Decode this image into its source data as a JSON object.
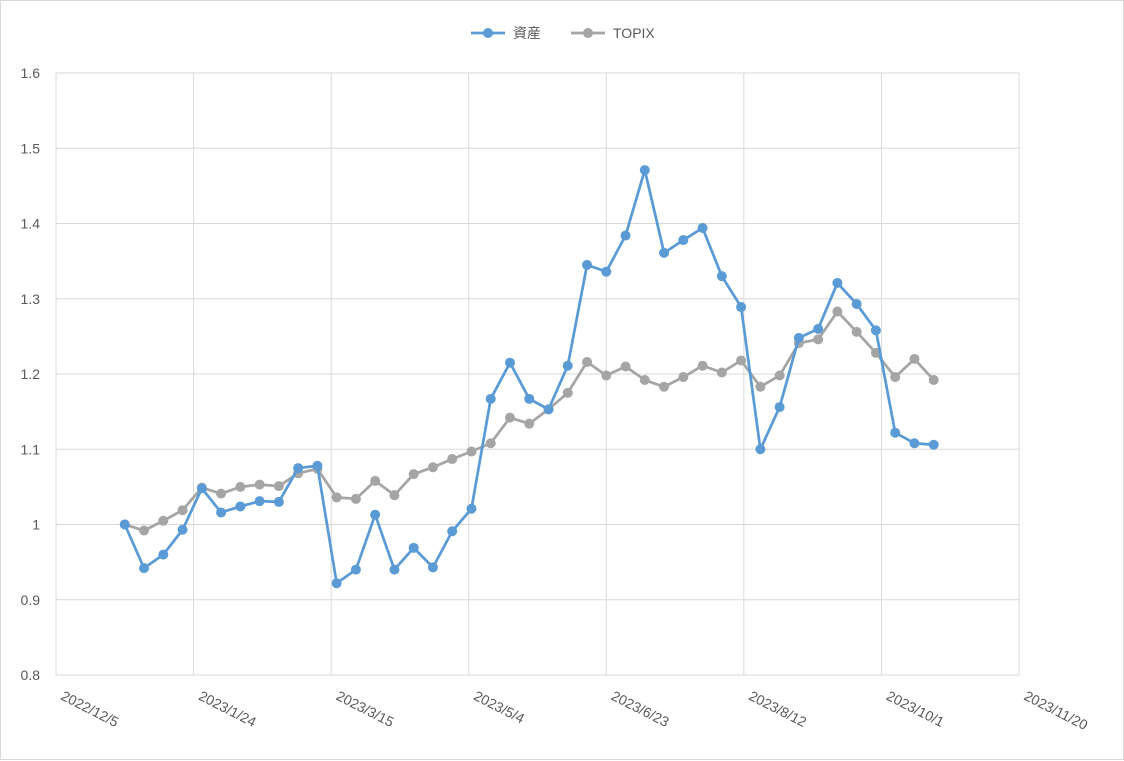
{
  "chart_data": {
    "type": "line",
    "title": "",
    "xlabel": "",
    "ylabel": "",
    "ylim": [
      0.8,
      1.6
    ],
    "yticks": [
      "0.8",
      "0.9",
      "1",
      "1.1",
      "1.2",
      "1.3",
      "1.4",
      "1.5",
      "1.6"
    ],
    "xlim": [
      "2022/12/5",
      "2023/11/20"
    ],
    "xticks": [
      "2022/12/5",
      "2023/1/24",
      "2023/3/15",
      "2023/5/4",
      "2023/6/23",
      "2023/8/12",
      "2023/10/1",
      "2023/11/20"
    ],
    "grid": true,
    "legend": "top-center",
    "x": [
      "2022/12/30",
      "2023/1/6",
      "2023/1/13",
      "2023/1/20",
      "2023/1/27",
      "2023/2/3",
      "2023/2/10",
      "2023/2/17",
      "2023/2/24",
      "2023/3/3",
      "2023/3/10",
      "2023/3/17",
      "2023/3/24",
      "2023/3/31",
      "2023/4/7",
      "2023/4/14",
      "2023/4/21",
      "2023/4/28",
      "2023/5/5",
      "2023/5/12",
      "2023/5/19",
      "2023/5/26",
      "2023/6/2",
      "2023/6/9",
      "2023/6/16",
      "2023/6/23",
      "2023/6/30",
      "2023/7/7",
      "2023/7/14",
      "2023/7/21",
      "2023/7/28",
      "2023/8/4",
      "2023/8/11",
      "2023/8/18",
      "2023/8/25",
      "2023/9/1",
      "2023/9/8",
      "2023/9/15",
      "2023/9/22",
      "2023/9/29",
      "2023/10/6",
      "2023/10/13",
      "2023/10/20"
    ],
    "series": [
      {
        "name": "資産",
        "color": "#5b9bd5",
        "values": [
          1.0,
          0.942,
          0.96,
          0.993,
          1.048,
          1.016,
          1.024,
          1.031,
          1.03,
          1.075,
          1.078,
          0.922,
          0.94,
          1.013,
          0.94,
          0.969,
          0.943,
          0.991,
          1.021,
          1.167,
          1.215,
          1.167,
          1.153,
          1.211,
          1.345,
          1.336,
          1.384,
          1.471,
          1.361,
          1.378,
          1.394,
          1.33,
          1.289,
          1.1,
          1.156,
          1.248,
          1.26,
          1.321,
          1.293,
          1.258,
          1.122,
          1.108,
          1.106
        ]
      },
      {
        "name": "TOPIX",
        "color": "#a5a5a5",
        "values": [
          1.0,
          0.992,
          1.005,
          1.019,
          1.049,
          1.041,
          1.05,
          1.053,
          1.051,
          1.068,
          1.074,
          1.036,
          1.034,
          1.058,
          1.039,
          1.067,
          1.076,
          1.087,
          1.097,
          1.108,
          1.142,
          1.134,
          1.153,
          1.175,
          1.216,
          1.198,
          1.21,
          1.192,
          1.183,
          1.196,
          1.211,
          1.202,
          1.218,
          1.183,
          1.198,
          1.241,
          1.246,
          1.283,
          1.256,
          1.228,
          1.196,
          1.22,
          1.192
        ]
      }
    ]
  }
}
